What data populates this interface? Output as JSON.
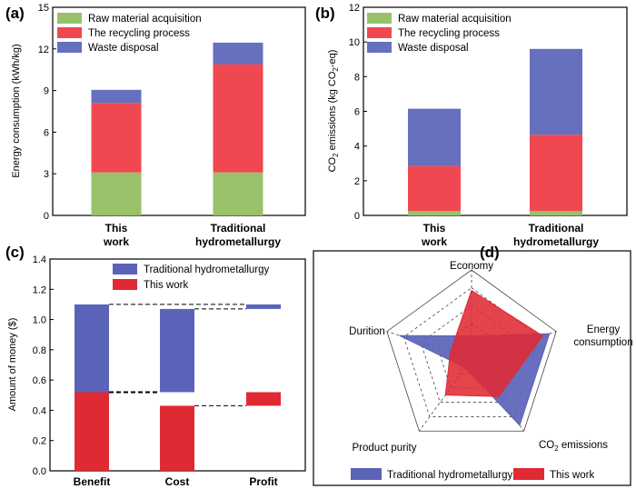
{
  "colors": {
    "raw": "#99c16a",
    "recycle": "#f04850",
    "waste": "#6670bf",
    "trad": "#5b63b8",
    "this": "#e02a33"
  },
  "chart_data": [
    {
      "panel": "(a)",
      "type": "bar",
      "stacked": true,
      "categories": [
        "This work",
        "Traditional hydrometallurgy"
      ],
      "series": [
        {
          "name": "Raw material acquisition",
          "values": [
            3.1,
            3.1
          ]
        },
        {
          "name": "The recycling process",
          "values": [
            5.0,
            7.8
          ]
        },
        {
          "name": "Waste disposal",
          "values": [
            0.95,
            1.55
          ]
        }
      ],
      "ylabel": "Energy consumption (kWh/kg)",
      "ylim": [
        0,
        15
      ],
      "yticks": [
        "0",
        "3",
        "6",
        "9",
        "12",
        "15"
      ],
      "legend": "top-left"
    },
    {
      "panel": "(b)",
      "type": "bar",
      "stacked": true,
      "categories": [
        "This work",
        "Traditional hydrometallurgy"
      ],
      "series": [
        {
          "name": "Raw material acquisition",
          "values": [
            0.25,
            0.25
          ]
        },
        {
          "name": "The recycling process",
          "values": [
            2.6,
            4.4
          ]
        },
        {
          "name": "Waste disposal",
          "values": [
            3.3,
            4.95
          ]
        }
      ],
      "ylabel_main": "CO",
      "ylabel_sub": "2",
      "ylabel_rest": " emissions (kg CO",
      "ylabel_sub2": "2",
      "ylabel_end": "-eq)",
      "ylim": [
        0,
        12
      ],
      "yticks": [
        "0",
        "2",
        "4",
        "6",
        "8",
        "10",
        "12"
      ],
      "legend": "top-left"
    },
    {
      "panel": "(c)",
      "type": "bar",
      "categories": [
        "Benefit",
        "Cost",
        "Profit"
      ],
      "series": [
        {
          "name": "Traditional hydrometallurgy",
          "bars": [
            [
              0,
              1.1
            ],
            [
              0.52,
              1.07
            ],
            [
              1.07,
              1.1
            ]
          ]
        },
        {
          "name": "This work",
          "bars": [
            [
              0,
              0.52
            ],
            [
              0,
              0.43
            ],
            [
              0.43,
              0.52
            ]
          ]
        }
      ],
      "ylabel": "Amount of money ($)",
      "ylim": [
        0,
        1.4
      ],
      "yticks": [
        "0.0",
        "0.2",
        "0.4",
        "0.6",
        "0.8",
        "1.0",
        "1.2",
        "1.4"
      ],
      "legend": "top-right"
    },
    {
      "panel": "(d)",
      "type": "radar",
      "axes": [
        "Economy",
        "Energy consumption",
        "CO2 emissions",
        "Product purity",
        "Durition"
      ],
      "series": [
        {
          "name": "Traditional hydrometallurgy",
          "values": [
            0.26,
            0.92,
            0.92,
            0.12,
            0.85
          ]
        },
        {
          "name": "This work",
          "values": [
            0.77,
            0.84,
            0.52,
            0.5,
            0.25
          ]
        }
      ],
      "legend": "bottom"
    }
  ],
  "labels": {
    "a_cat1_l1": "This",
    "a_cat1_l2": "work",
    "a_cat2_l1": "Traditional",
    "a_cat2_l2": "hydrometallurgy",
    "radar_economy": "Economy",
    "radar_energy_l1": "Energy",
    "radar_energy_l2": "consumption",
    "radar_co2_main": "CO",
    "radar_co2_sub": "2",
    "radar_co2_rest": " emissions",
    "radar_purity": "Product purity",
    "radar_durition": "Durition"
  }
}
